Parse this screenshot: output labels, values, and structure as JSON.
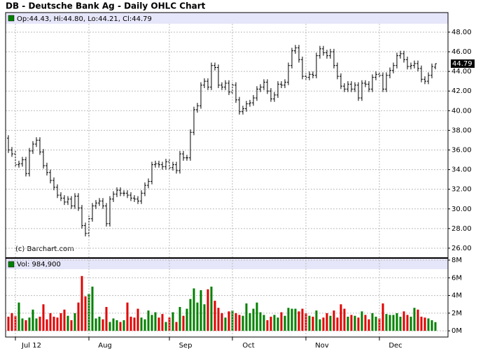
{
  "title": "DB - Deutsche Bank Ag - Daily OHLC Chart",
  "copyright": "(c) Barchart.com",
  "chart_data": [
    {
      "type": "ohlc",
      "ohlc_label": "Op:44.43, Hi:44.80, Lo:44.21, Cl:44.79",
      "x": [
        null,
        null,
        "Jul 12",
        null,
        null,
        null,
        null,
        null,
        null,
        null,
        null,
        null,
        null,
        null,
        null,
        null,
        null,
        null,
        null,
        null,
        null,
        null,
        null,
        "Aug",
        null,
        null,
        null,
        null,
        null,
        null,
        null,
        null,
        null,
        null,
        null,
        null,
        null,
        null,
        null,
        null,
        null,
        null,
        null,
        null,
        null,
        null,
        "Sep",
        null,
        null,
        null,
        null,
        null,
        null,
        null,
        null,
        null,
        null,
        null,
        null,
        null,
        null,
        null,
        null,
        null,
        "Oct",
        null,
        null,
        null,
        null,
        null,
        null,
        null,
        null,
        null,
        null,
        null,
        null,
        null,
        null,
        null,
        null,
        null,
        null,
        null,
        null,
        "Nov",
        null,
        null,
        null,
        null,
        null,
        null,
        null,
        null,
        null,
        null,
        null,
        null,
        null,
        null,
        null,
        null,
        null,
        null,
        null,
        null,
        "Dec",
        null,
        null,
        null,
        null,
        null,
        null,
        null,
        null,
        null,
        null,
        null,
        null,
        null,
        null,
        null,
        null
      ],
      "open": [
        37.2,
        36.0,
        35.6,
        34.5,
        34.6,
        35.0,
        33.6,
        35.9,
        36.6,
        37.0,
        35.8,
        34.4,
        33.7,
        32.9,
        32.2,
        31.4,
        31.1,
        30.7,
        31.0,
        30.3,
        31.3,
        30.1,
        28.3,
        27.5,
        29.0,
        30.3,
        30.6,
        30.8,
        30.3,
        28.5,
        31.0,
        31.5,
        31.9,
        31.6,
        31.6,
        31.4,
        31.1,
        31.0,
        30.8,
        31.6,
        32.4,
        32.8,
        34.5,
        34.6,
        34.5,
        34.3,
        34.8,
        34.2,
        34.5,
        33.9,
        35.6,
        35.2,
        35.2,
        37.8,
        40.1,
        40.5,
        42.6,
        43.0,
        42.4,
        44.6,
        44.4,
        42.6,
        42.4,
        42.8,
        41.9,
        42.6,
        41.1,
        39.9,
        40.2,
        40.7,
        40.8,
        41.3,
        42.2,
        42.4,
        42.9,
        42.0,
        41.2,
        41.6,
        42.7,
        42.6,
        42.9,
        44.6,
        46.1,
        46.4,
        45.2,
        43.5,
        43.4,
        43.7,
        43.6,
        45.6,
        46.3,
        45.9,
        45.6,
        46.0,
        44.6,
        43.5,
        42.5,
        42.2,
        42.7,
        42.2,
        42.6,
        41.3,
        42.8,
        42.7,
        42.2,
        43.4,
        43.7,
        43.6,
        42.2,
        43.6,
        44.1,
        44.6,
        45.6,
        45.8,
        45.2,
        44.5,
        44.6,
        44.8,
        44.3,
        43.2,
        43.0,
        43.6,
        44.43
      ],
      "high": [
        37.5,
        36.3,
        35.9,
        34.9,
        35.3,
        35.3,
        36.2,
        36.9,
        37.3,
        37.3,
        36.1,
        34.7,
        34.0,
        33.2,
        32.5,
        31.7,
        31.4,
        31.3,
        31.3,
        31.6,
        31.6,
        30.4,
        28.6,
        29.3,
        30.6,
        30.9,
        31.1,
        31.1,
        30.6,
        31.3,
        31.8,
        32.2,
        32.2,
        31.9,
        31.9,
        31.7,
        31.4,
        31.3,
        31.9,
        32.7,
        33.1,
        34.8,
        34.9,
        34.9,
        34.8,
        35.1,
        35.1,
        34.8,
        34.8,
        35.9,
        35.9,
        35.5,
        38.1,
        40.4,
        40.8,
        42.9,
        43.3,
        43.3,
        44.9,
        44.9,
        44.7,
        42.9,
        43.1,
        43.1,
        42.9,
        42.9,
        41.4,
        40.5,
        41.0,
        41.1,
        41.6,
        42.5,
        42.7,
        43.2,
        43.2,
        42.3,
        41.9,
        43.0,
        43.0,
        43.2,
        44.9,
        46.4,
        46.7,
        46.7,
        45.5,
        43.8,
        44.0,
        44.0,
        45.9,
        46.6,
        46.6,
        46.2,
        46.3,
        46.3,
        44.9,
        43.8,
        42.8,
        43.0,
        43.0,
        42.9,
        42.9,
        43.1,
        43.1,
        43.0,
        43.7,
        44.0,
        44.0,
        43.9,
        43.9,
        44.4,
        44.9,
        45.9,
        46.1,
        46.1,
        45.5,
        44.9,
        45.1,
        45.1,
        44.6,
        43.5,
        43.9,
        44.8,
        44.8
      ],
      "low": [
        35.7,
        35.3,
        34.2,
        34.2,
        34.3,
        33.3,
        33.3,
        35.6,
        36.3,
        35.5,
        34.1,
        33.4,
        32.6,
        31.9,
        31.1,
        30.8,
        30.4,
        30.4,
        30.0,
        30.0,
        29.8,
        28.0,
        27.2,
        27.2,
        28.7,
        30.0,
        30.3,
        30.0,
        28.2,
        28.2,
        30.7,
        31.2,
        31.3,
        31.3,
        31.1,
        30.8,
        30.7,
        30.5,
        30.5,
        31.3,
        32.1,
        32.5,
        34.2,
        34.2,
        34.0,
        34.0,
        33.9,
        33.9,
        33.6,
        33.6,
        34.9,
        34.9,
        34.9,
        37.5,
        39.8,
        40.2,
        42.3,
        42.1,
        42.1,
        44.1,
        42.3,
        42.1,
        42.1,
        41.6,
        41.6,
        40.8,
        39.6,
        39.6,
        39.9,
        40.4,
        40.5,
        41.0,
        41.9,
        42.1,
        41.7,
        40.9,
        40.9,
        41.3,
        42.3,
        42.3,
        42.6,
        44.3,
        45.8,
        44.9,
        43.2,
        43.1,
        43.1,
        43.3,
        43.3,
        45.3,
        45.6,
        45.3,
        45.3,
        44.3,
        43.2,
        42.2,
        41.9,
        41.9,
        41.9,
        41.9,
        41.0,
        41.0,
        42.4,
        41.9,
        41.9,
        43.1,
        43.3,
        41.9,
        41.9,
        43.3,
        43.8,
        44.3,
        45.3,
        44.9,
        44.2,
        44.2,
        44.3,
        44.0,
        42.9,
        42.7,
        42.7,
        43.3,
        44.21
      ],
      "close": [
        36.0,
        35.6,
        34.5,
        34.6,
        35.0,
        33.6,
        35.9,
        36.6,
        37.0,
        35.8,
        34.4,
        33.7,
        32.9,
        32.2,
        31.4,
        31.1,
        30.7,
        31.0,
        30.3,
        31.3,
        30.1,
        28.3,
        27.5,
        29.0,
        30.3,
        30.6,
        30.8,
        30.3,
        28.5,
        31.0,
        31.5,
        31.9,
        31.6,
        31.6,
        31.4,
        31.1,
        31.0,
        30.8,
        31.6,
        32.4,
        32.8,
        34.5,
        34.6,
        34.5,
        34.3,
        34.8,
        34.2,
        34.5,
        33.9,
        35.6,
        35.2,
        35.2,
        37.8,
        40.1,
        40.5,
        42.6,
        43.0,
        42.4,
        44.6,
        44.4,
        42.6,
        42.4,
        42.8,
        41.9,
        42.6,
        41.1,
        39.9,
        40.2,
        40.7,
        40.8,
        41.3,
        42.2,
        42.4,
        42.9,
        42.0,
        41.2,
        41.6,
        42.7,
        42.6,
        42.9,
        44.6,
        46.1,
        46.4,
        45.2,
        43.5,
        43.4,
        43.7,
        43.6,
        45.6,
        46.3,
        45.9,
        45.6,
        46.0,
        44.6,
        43.5,
        42.5,
        42.2,
        42.7,
        42.2,
        42.6,
        41.3,
        42.8,
        42.7,
        42.2,
        43.4,
        43.7,
        43.6,
        42.2,
        43.6,
        44.1,
        44.6,
        45.6,
        45.8,
        45.2,
        44.5,
        44.6,
        44.8,
        44.3,
        43.2,
        43.0,
        43.6,
        44.5,
        44.79
      ],
      "color": "#000000",
      "ylim": [
        25.07,
        48.85
      ],
      "yticks": [
        {
          "value": 26,
          "label": "26.00"
        },
        {
          "value": 28,
          "label": "28.00"
        },
        {
          "value": 30,
          "label": "30.00"
        },
        {
          "value": 32,
          "label": "32.00"
        },
        {
          "value": 34,
          "label": "34.00"
        },
        {
          "value": 36,
          "label": "36.00"
        },
        {
          "value": 38,
          "label": "38.00"
        },
        {
          "value": 40,
          "label": "40.00"
        },
        {
          "value": 42,
          "label": "42.00"
        },
        {
          "value": 44,
          "label": "44.00"
        },
        {
          "value": 46,
          "label": "46.00"
        },
        {
          "value": 48,
          "label": "48.00"
        }
      ],
      "grid": true
    },
    {
      "type": "bar",
      "volume_label": "Vol: 984,900",
      "values": [
        1600000,
        2000000,
        1700000,
        3200000,
        1400000,
        1200000,
        1500000,
        2400000,
        1400000,
        1600000,
        3000000,
        1300000,
        2000000,
        1600000,
        1500000,
        2000000,
        2400000,
        1700000,
        1200000,
        2000000,
        3200000,
        6200000,
        3900000,
        4200000,
        5000000,
        1400000,
        1600000,
        1300000,
        2700000,
        1000000,
        1400000,
        1200000,
        1000000,
        1200000,
        3200000,
        1600000,
        1500000,
        2500000,
        1500000,
        1300000,
        2300000,
        1800000,
        2100000,
        1500000,
        1900000,
        1000000,
        1500000,
        2100000,
        1000000,
        2700000,
        1700000,
        2500000,
        3600000,
        4800000,
        3200000,
        4600000,
        3000000,
        4700000,
        5000000,
        3400000,
        2600000,
        2000000,
        1500000,
        2200000,
        2300000,
        2000000,
        1800000,
        1700000,
        3100000,
        2000000,
        2500000,
        3200000,
        2100000,
        1800000,
        1200000,
        1600000,
        1800000,
        1500000,
        2100000,
        1700000,
        2600000,
        2500000,
        2500000,
        2200000,
        2500000,
        2000000,
        1700000,
        1600000,
        2300000,
        1300000,
        1500000,
        2000000,
        1700000,
        2300000,
        1500000,
        3000000,
        2500000,
        1600000,
        1800000,
        1700000,
        1500000,
        2200000,
        1800000,
        1300000,
        2000000,
        1600000,
        1400000,
        3100000,
        1900000,
        1800000,
        1800000,
        2000000,
        1600000,
        2200000,
        1800000,
        1600000,
        2600000,
        2400000,
        1600000,
        1500000,
        1400000,
        1200000,
        984900
      ],
      "up_color": "#008000",
      "down_color": "#e00000",
      "ylim": [
        -700000,
        8000000
      ],
      "yticks": [
        {
          "value": 0,
          "label": "0M"
        },
        {
          "value": 2000000,
          "label": "2M"
        },
        {
          "value": 4000000,
          "label": "4M"
        },
        {
          "value": 6000000,
          "label": "6M"
        },
        {
          "value": 8000000,
          "label": "8M"
        }
      ],
      "grid": true
    }
  ]
}
